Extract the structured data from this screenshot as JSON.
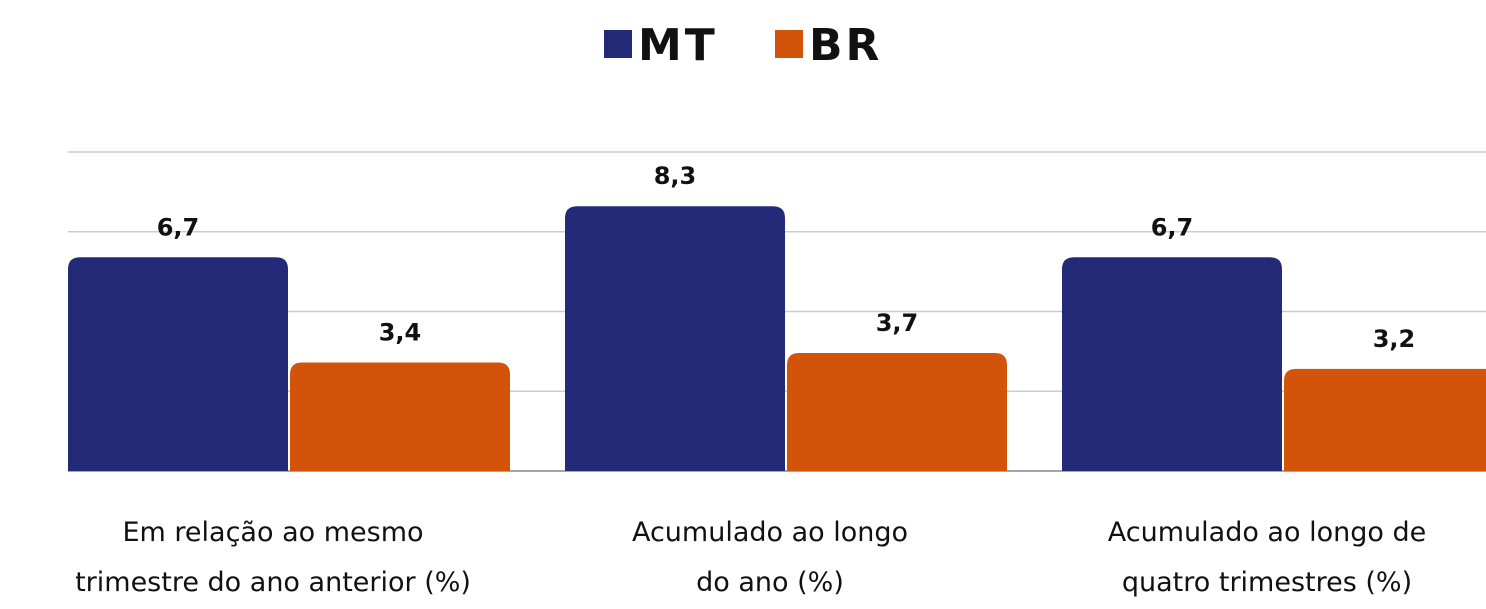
{
  "chart_data": {
    "type": "bar",
    "categories": [
      "Em relação ao mesmo\ntrimestre do ano anterior (%)",
      "Acumulado ao longo\ndo ano (%)",
      "Acumulado ao longo de\nquatro trimestres (%)"
    ],
    "series": [
      {
        "name": "MT",
        "color": "#232b78",
        "values": [
          6.7,
          8.3,
          6.7
        ],
        "value_labels": [
          "6,7",
          "8,3",
          "6,7"
        ]
      },
      {
        "name": "BR",
        "color": "#d4530b",
        "values": [
          3.4,
          3.7,
          3.2
        ],
        "value_labels": [
          "3,4",
          "3,7",
          "3,2"
        ]
      }
    ],
    "ylim": [
      0,
      10
    ],
    "yticks": [
      0,
      2.5,
      5,
      7.5,
      10
    ],
    "grid": true,
    "legend": "top"
  }
}
